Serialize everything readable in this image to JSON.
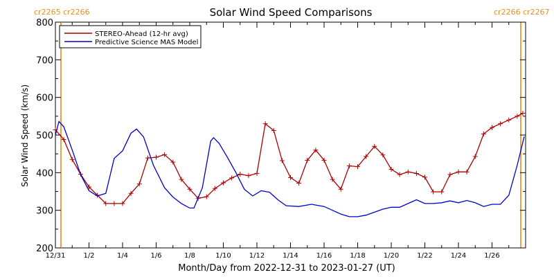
{
  "chart_data": {
    "type": "line",
    "title": "Solar Wind Speed Comparisons",
    "xlabel": "Month/Day from 2022-12-31 to 2023-01-27 (UT)",
    "ylabel": "Solar Wind Speed (km/s)",
    "xlim": [
      "2022-12-31",
      "2023-01-28"
    ],
    "ylim": [
      200,
      800
    ],
    "yticks": [
      200,
      300,
      400,
      500,
      600,
      700,
      800
    ],
    "xticks": [
      "12/31",
      "1/2",
      "1/4",
      "1/6",
      "1/8",
      "1/10",
      "1/12",
      "1/14",
      "1/16",
      "1/18",
      "1/20",
      "1/22",
      "1/24",
      "1/26"
    ],
    "carrington_left": [
      "cr2265",
      "cr2266"
    ],
    "carrington_right": [
      "cr2266",
      "cr2267"
    ],
    "carrington_color": "#f0a040",
    "legend_position": "top-left",
    "series": [
      {
        "name": "STEREO-Ahead (12-hr avg)",
        "color": "#aa0000",
        "markers": true,
        "points": [
          [
            "2022-12-31 00:00",
            514
          ],
          [
            "2022-12-31 12:00",
            488
          ],
          [
            "2023-01-01 00:00",
            435
          ],
          [
            "2023-01-01 12:00",
            396
          ],
          [
            "2023-01-02 00:00",
            362
          ],
          [
            "2023-01-02 12:00",
            340
          ],
          [
            "2023-01-03 00:00",
            318
          ],
          [
            "2023-01-03 12:00",
            318
          ],
          [
            "2023-01-04 00:00",
            318
          ],
          [
            "2023-01-04 12:00",
            345
          ],
          [
            "2023-01-05 00:00",
            370
          ],
          [
            "2023-01-05 12:00",
            439
          ],
          [
            "2023-01-06 00:00",
            441
          ],
          [
            "2023-01-06 12:00",
            448
          ],
          [
            "2023-01-07 00:00",
            428
          ],
          [
            "2023-01-07 12:00",
            382
          ],
          [
            "2023-01-08 00:00",
            356
          ],
          [
            "2023-01-08 12:00",
            332
          ],
          [
            "2023-01-09 00:00",
            336
          ],
          [
            "2023-01-09 12:00",
            358
          ],
          [
            "2023-01-10 00:00",
            373
          ],
          [
            "2023-01-10 12:00",
            386
          ],
          [
            "2023-01-11 00:00",
            396
          ],
          [
            "2023-01-11 12:00",
            392
          ],
          [
            "2023-01-12 00:00",
            398
          ],
          [
            "2023-01-12 12:00",
            530
          ],
          [
            "2023-01-13 00:00",
            512
          ],
          [
            "2023-01-13 12:00",
            432
          ],
          [
            "2023-01-14 00:00",
            387
          ],
          [
            "2023-01-14 12:00",
            372
          ],
          [
            "2023-01-15 00:00",
            433
          ],
          [
            "2023-01-15 12:00",
            460
          ],
          [
            "2023-01-16 00:00",
            433
          ],
          [
            "2023-01-16 12:00",
            382
          ],
          [
            "2023-01-17 00:00",
            356
          ],
          [
            "2023-01-17 12:00",
            418
          ],
          [
            "2023-01-18 00:00",
            416
          ],
          [
            "2023-01-18 12:00",
            443
          ],
          [
            "2023-01-19 00:00",
            470
          ],
          [
            "2023-01-19 12:00",
            447
          ],
          [
            "2023-01-20 00:00",
            409
          ],
          [
            "2023-01-20 12:00",
            395
          ],
          [
            "2023-01-21 00:00",
            402
          ],
          [
            "2023-01-21 12:00",
            398
          ],
          [
            "2023-01-22 00:00",
            388
          ],
          [
            "2023-01-22 12:00",
            349
          ],
          [
            "2023-01-23 00:00",
            349
          ],
          [
            "2023-01-23 12:00",
            395
          ],
          [
            "2023-01-24 00:00",
            402
          ],
          [
            "2023-01-24 12:00",
            402
          ],
          [
            "2023-01-25 00:00",
            443
          ],
          [
            "2023-01-25 12:00",
            503
          ],
          [
            "2023-01-26 00:00",
            520
          ],
          [
            "2023-01-26 12:00",
            530
          ],
          [
            "2023-01-27 00:00",
            540
          ],
          [
            "2023-01-27 12:00",
            550
          ],
          [
            "2023-01-27 20:00",
            558
          ]
        ]
      },
      {
        "name": "Predictive Science MAS Model",
        "color": "#0000cc",
        "markers": false,
        "points": [
          [
            "2022-12-31 00:00",
            500
          ],
          [
            "2022-12-31 05:00",
            536
          ],
          [
            "2022-12-31 12:00",
            522
          ],
          [
            "2023-01-01 00:00",
            460
          ],
          [
            "2023-01-01 12:00",
            395
          ],
          [
            "2023-01-02 00:00",
            352
          ],
          [
            "2023-01-02 12:00",
            338
          ],
          [
            "2023-01-03 00:00",
            345
          ],
          [
            "2023-01-03 12:00",
            438
          ],
          [
            "2023-01-04 00:00",
            458
          ],
          [
            "2023-01-04 12:00",
            505
          ],
          [
            "2023-01-04 20:00",
            516
          ],
          [
            "2023-01-05 06:00",
            495
          ],
          [
            "2023-01-05 20:00",
            420
          ],
          [
            "2023-01-06 12:00",
            360
          ],
          [
            "2023-01-07 00:00",
            335
          ],
          [
            "2023-01-07 12:00",
            318
          ],
          [
            "2023-01-08 00:00",
            306
          ],
          [
            "2023-01-08 06:00",
            306
          ],
          [
            "2023-01-08 18:00",
            360
          ],
          [
            "2023-01-09 06:00",
            484
          ],
          [
            "2023-01-09 10:00",
            493
          ],
          [
            "2023-01-09 18:00",
            478
          ],
          [
            "2023-01-10 06:00",
            440
          ],
          [
            "2023-01-10 18:00",
            400
          ],
          [
            "2023-01-11 06:00",
            356
          ],
          [
            "2023-01-11 18:00",
            338
          ],
          [
            "2023-01-12 06:00",
            352
          ],
          [
            "2023-01-12 18:00",
            348
          ],
          [
            "2023-01-13 06:00",
            328
          ],
          [
            "2023-01-13 18:00",
            312
          ],
          [
            "2023-01-14 12:00",
            310
          ],
          [
            "2023-01-15 06:00",
            316
          ],
          [
            "2023-01-16 00:00",
            310
          ],
          [
            "2023-01-16 12:00",
            300
          ],
          [
            "2023-01-17 00:00",
            290
          ],
          [
            "2023-01-17 12:00",
            283
          ],
          [
            "2023-01-18 00:00",
            283
          ],
          [
            "2023-01-18 12:00",
            287
          ],
          [
            "2023-01-19 00:00",
            295
          ],
          [
            "2023-01-19 12:00",
            303
          ],
          [
            "2023-01-20 00:00",
            308
          ],
          [
            "2023-01-20 12:00",
            308
          ],
          [
            "2023-01-21 00:00",
            318
          ],
          [
            "2023-01-21 12:00",
            328
          ],
          [
            "2023-01-22 00:00",
            318
          ],
          [
            "2023-01-22 12:00",
            318
          ],
          [
            "2023-01-23 00:00",
            320
          ],
          [
            "2023-01-23 12:00",
            325
          ],
          [
            "2023-01-24 00:00",
            320
          ],
          [
            "2023-01-24 12:00",
            326
          ],
          [
            "2023-01-25 00:00",
            320
          ],
          [
            "2023-01-25 12:00",
            310
          ],
          [
            "2023-01-26 00:00",
            316
          ],
          [
            "2023-01-26 12:00",
            316
          ],
          [
            "2023-01-27 00:00",
            340
          ],
          [
            "2023-01-27 12:00",
            420
          ],
          [
            "2023-01-27 22:00",
            496
          ]
        ]
      }
    ]
  }
}
